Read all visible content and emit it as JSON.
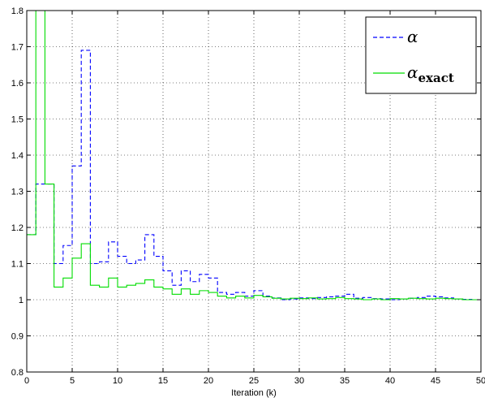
{
  "chart_data": {
    "type": "line",
    "step": true,
    "title": "",
    "xlabel": "Iteration (k)",
    "ylabel": "",
    "xlim": [
      0,
      50
    ],
    "ylim": [
      0.8,
      1.8
    ],
    "xticks": [
      0,
      5,
      10,
      15,
      20,
      25,
      30,
      35,
      40,
      45,
      50
    ],
    "xtick_labels": [
      "0",
      "5",
      "10",
      "15",
      "20",
      "25",
      "30",
      "35",
      "40",
      "45",
      "50"
    ],
    "yticks": [
      0.8,
      0.9,
      1.0,
      1.1,
      1.2,
      1.3,
      1.4,
      1.5,
      1.6,
      1.7,
      1.8
    ],
    "ytick_labels": [
      "0.8",
      "0.9",
      "1",
      "1.1",
      "1.2",
      "1.3",
      "1.4",
      "1.5",
      "1.6",
      "1.7",
      "1.8"
    ],
    "grid": true,
    "legend_position": "top-right",
    "series": [
      {
        "name": "α",
        "legend_symbol": "α",
        "legend_subscript": "",
        "color": "#0000ff",
        "style": "dashed",
        "x": [
          0,
          1,
          3,
          4,
          5,
          6,
          7,
          8,
          9,
          10,
          11,
          12,
          13,
          14,
          15,
          16,
          17,
          18,
          19,
          20,
          21,
          22,
          23,
          24,
          25,
          26,
          27,
          28,
          29,
          30,
          31,
          32,
          33,
          34,
          35,
          36,
          37,
          38,
          39,
          40,
          41,
          42,
          43,
          44,
          45,
          46,
          47,
          48,
          49,
          50
        ],
        "y": [
          1.18,
          1.32,
          1.1,
          1.15,
          1.37,
          1.69,
          1.1,
          1.105,
          1.16,
          1.12,
          1.1,
          1.11,
          1.18,
          1.12,
          1.08,
          1.04,
          1.08,
          1.05,
          1.07,
          1.06,
          1.02,
          1.015,
          1.02,
          1.01,
          1.025,
          1.01,
          1.005,
          1.0,
          1.002,
          1.005,
          1.003,
          1.006,
          1.008,
          1.01,
          1.015,
          1.004,
          1.006,
          1.003,
          1.002,
          1.0,
          1.002,
          1.004,
          1.006,
          1.01,
          1.008,
          1.005,
          1.002,
          1.001,
          1.0,
          1.0
        ]
      },
      {
        "name": "αexact",
        "legend_symbol": "α",
        "legend_subscript": "exact",
        "color": "#00dd00",
        "style": "solid",
        "x": [
          0,
          1,
          2,
          3,
          4,
          5,
          6,
          7,
          8,
          9,
          10,
          11,
          12,
          13,
          14,
          15,
          16,
          17,
          18,
          19,
          20,
          21,
          22,
          23,
          24,
          25,
          26,
          27,
          28,
          29,
          30,
          31,
          32,
          33,
          34,
          35,
          36,
          37,
          38,
          39,
          40,
          41,
          42,
          43,
          44,
          45,
          46,
          47,
          48,
          49,
          50
        ],
        "y": [
          1.18,
          1.8,
          1.32,
          1.035,
          1.06,
          1.115,
          1.155,
          1.04,
          1.035,
          1.06,
          1.035,
          1.04,
          1.045,
          1.055,
          1.035,
          1.03,
          1.015,
          1.03,
          1.015,
          1.025,
          1.02,
          1.01,
          1.005,
          1.01,
          1.005,
          1.012,
          1.008,
          1.004,
          1.002,
          1.004,
          1.003,
          1.005,
          1.002,
          1.003,
          1.006,
          1.003,
          1.002,
          1.0,
          1.002,
          1.0,
          1.003,
          1.002,
          1.004,
          1.003,
          1.002,
          1.004,
          1.003,
          1.002,
          1.0,
          1.0,
          1.0
        ]
      }
    ]
  }
}
